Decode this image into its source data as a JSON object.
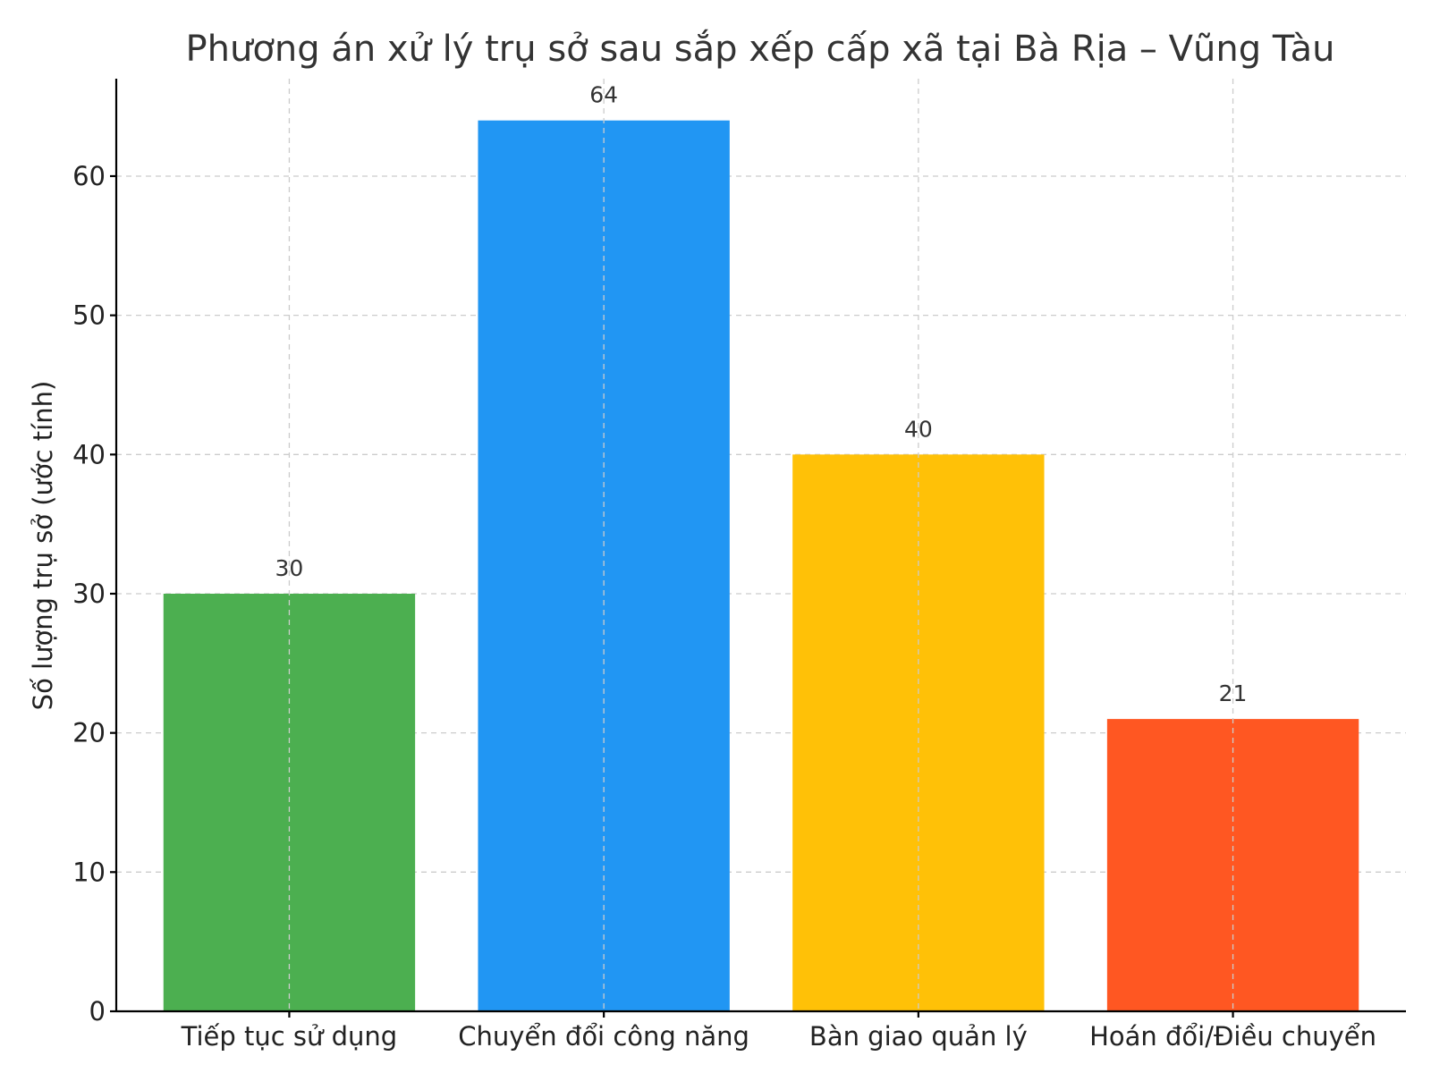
{
  "chart_data": {
    "type": "bar",
    "title": "Phương án xử lý trụ sở sau sắp xếp cấp xã tại Bà Rịa – Vũng Tàu",
    "xlabel": "",
    "ylabel": "Số lượng trụ sở (ước tính)",
    "categories": [
      "Tiếp tục sử dụng",
      "Chuyển đổi công năng",
      "Bàn giao quản lý",
      "Hoán đổi/Điều chuyển"
    ],
    "values": [
      30,
      64,
      40,
      21
    ],
    "value_labels": [
      "30",
      "64",
      "40",
      "21"
    ],
    "colors": [
      "#4caf50",
      "#2196f3",
      "#ffc107",
      "#ff5722"
    ],
    "ylim": [
      0,
      67
    ],
    "yticks": [
      0,
      10,
      20,
      30,
      40,
      50,
      60
    ],
    "grid": true
  }
}
